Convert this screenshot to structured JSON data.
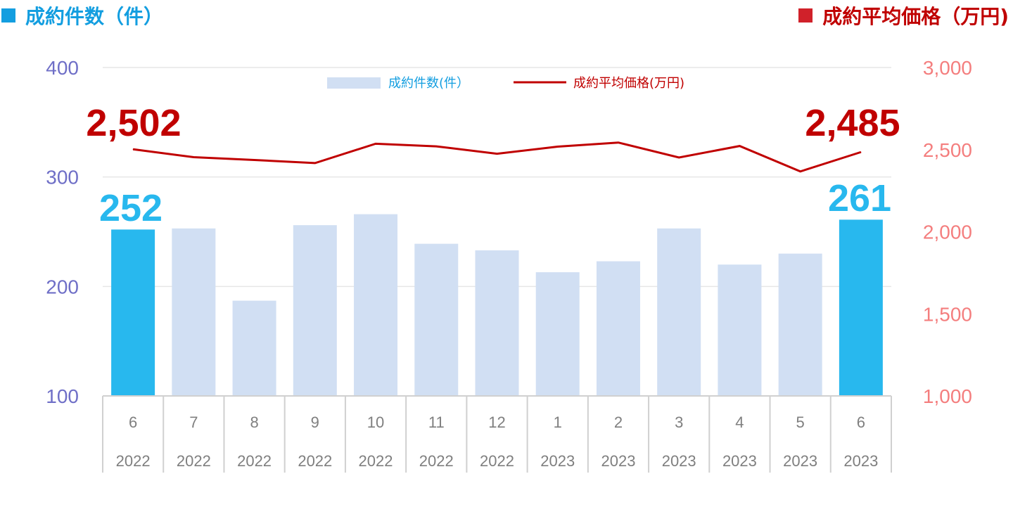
{
  "header": {
    "left_title": "成約件数（件）",
    "right_title": "成約平均価格（万円)"
  },
  "colors": {
    "bar_highlight": "#28b8ee",
    "bar_normal": "#d1dff3",
    "line": "#c00000",
    "left_axis": "#6f6fc7",
    "right_axis": "#f47e7e",
    "left_title": "#139ee0",
    "right_title": "#c00000",
    "left_square": "#139ee0",
    "right_square": "#d0212a"
  },
  "chart_data": {
    "type": "bar",
    "categories": [
      {
        "month": "6",
        "year": "2022"
      },
      {
        "month": "7",
        "year": "2022"
      },
      {
        "month": "8",
        "year": "2022"
      },
      {
        "month": "9",
        "year": "2022"
      },
      {
        "month": "10",
        "year": "2022"
      },
      {
        "month": "11",
        "year": "2022"
      },
      {
        "month": "12",
        "year": "2022"
      },
      {
        "month": "1",
        "year": "2023"
      },
      {
        "month": "2",
        "year": "2023"
      },
      {
        "month": "3",
        "year": "2023"
      },
      {
        "month": "4",
        "year": "2023"
      },
      {
        "month": "5",
        "year": "2023"
      },
      {
        "month": "6",
        "year": "2023"
      }
    ],
    "series": [
      {
        "name": "成約件数(件）",
        "type": "bar",
        "axis": "left",
        "values": [
          252,
          253,
          187,
          256,
          266,
          239,
          233,
          213,
          223,
          253,
          220,
          230,
          261
        ],
        "highlight": [
          true,
          false,
          false,
          false,
          false,
          false,
          false,
          false,
          false,
          false,
          false,
          false,
          true
        ]
      },
      {
        "name": "成約平均価格(万円)",
        "type": "line",
        "axis": "right",
        "values": [
          2502,
          2454,
          2437,
          2418,
          2536,
          2520,
          2475,
          2518,
          2543,
          2452,
          2522,
          2367,
          2485
        ]
      }
    ],
    "left_axis": {
      "ylim": [
        100,
        400
      ],
      "ticks": [
        "100",
        "200",
        "300",
        "400"
      ]
    },
    "right_axis": {
      "ylim": [
        1000,
        3000
      ],
      "ticks": [
        "1,000",
        "1,500",
        "2,000",
        "2,500",
        "3,000"
      ]
    },
    "callouts": {
      "first_count": "252",
      "last_count": "261",
      "first_price": "2,502",
      "last_price": "2,485"
    },
    "legend": {
      "placement": "top-center"
    },
    "grid": true
  }
}
